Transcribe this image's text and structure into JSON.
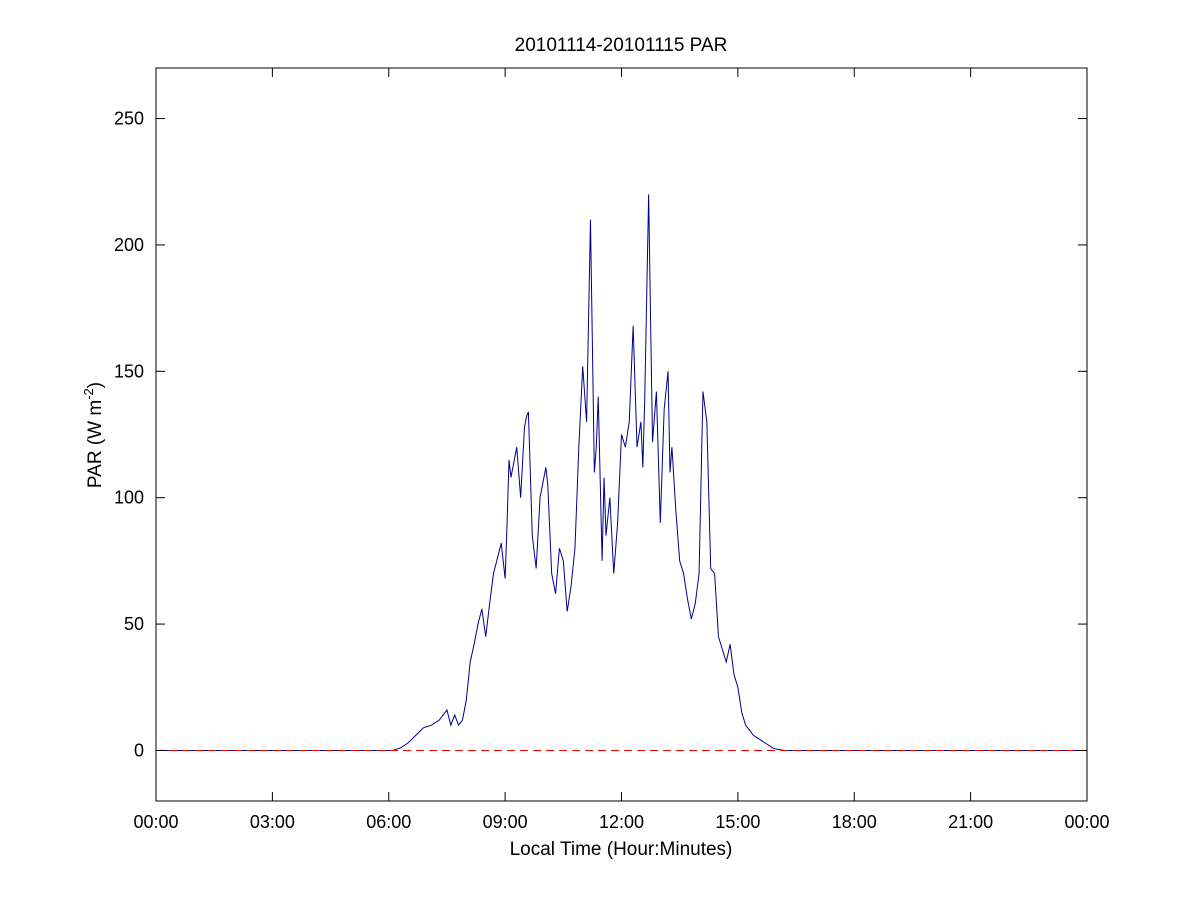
{
  "chart_data": {
    "type": "line",
    "title": "20101114-20101115 PAR",
    "xlabel": "Local Time (Hour:Minutes)",
    "ylabel": {
      "main": "PAR (W m",
      "superscript": "-2",
      "close": ")"
    },
    "xlim": [
      0,
      24
    ],
    "ylim": [
      -20,
      270
    ],
    "x_ticks": [
      {
        "value": 0,
        "label": "00:00"
      },
      {
        "value": 3,
        "label": "03:00"
      },
      {
        "value": 6,
        "label": "06:00"
      },
      {
        "value": 9,
        "label": "09:00"
      },
      {
        "value": 12,
        "label": "12:00"
      },
      {
        "value": 15,
        "label": "15:00"
      },
      {
        "value": 18,
        "label": "18:00"
      },
      {
        "value": 21,
        "label": "21:00"
      },
      {
        "value": 24,
        "label": "00:00"
      }
    ],
    "y_ticks": [
      {
        "value": 0,
        "label": "0"
      },
      {
        "value": 50,
        "label": "50"
      },
      {
        "value": 100,
        "label": "100"
      },
      {
        "value": 150,
        "label": "150"
      },
      {
        "value": 200,
        "label": "200"
      },
      {
        "value": 250,
        "label": "250"
      }
    ],
    "grid": false,
    "series": [
      {
        "color": "#00008b",
        "style": "solid",
        "x": [
          0,
          6.1,
          6.3,
          6.5,
          6.7,
          6.9,
          7.1,
          7.3,
          7.5,
          7.6,
          7.7,
          7.8,
          7.9,
          8.0,
          8.1,
          8.2,
          8.3,
          8.4,
          8.5,
          8.6,
          8.7,
          8.8,
          8.9,
          9.0,
          9.05,
          9.1,
          9.15,
          9.2,
          9.3,
          9.4,
          9.5,
          9.55,
          9.6,
          9.7,
          9.8,
          9.9,
          10.0,
          10.05,
          10.1,
          10.2,
          10.3,
          10.4,
          10.5,
          10.6,
          10.7,
          10.8,
          10.9,
          11.0,
          11.1,
          11.2,
          11.3,
          11.35,
          11.4,
          11.5,
          11.55,
          11.6,
          11.7,
          11.8,
          11.9,
          12.0,
          12.1,
          12.2,
          12.3,
          12.4,
          12.5,
          12.55,
          12.6,
          12.7,
          12.75,
          12.8,
          12.9,
          13.0,
          13.1,
          13.2,
          13.25,
          13.3,
          13.4,
          13.5,
          13.6,
          13.7,
          13.8,
          13.9,
          14.0,
          14.1,
          14.2,
          14.3,
          14.4,
          14.5,
          14.6,
          14.7,
          14.8,
          14.9,
          15.0,
          15.1,
          15.2,
          15.3,
          15.4,
          15.5,
          15.6,
          15.7,
          15.8,
          15.9,
          16.0,
          16.2,
          16.4,
          16.6,
          16.8,
          17.0,
          17.2,
          17.5,
          24
        ],
        "values": [
          0,
          0,
          1,
          3,
          6,
          9,
          10,
          12,
          16,
          10,
          14,
          10,
          12,
          20,
          35,
          42,
          50,
          56,
          45,
          58,
          70,
          76,
          82,
          68,
          90,
          115,
          108,
          112,
          120,
          100,
          128,
          132,
          134,
          85,
          72,
          100,
          108,
          112,
          105,
          70,
          62,
          80,
          75,
          55,
          65,
          80,
          120,
          152,
          130,
          210,
          110,
          120,
          140,
          75,
          108,
          85,
          100,
          70,
          90,
          125,
          120,
          130,
          168,
          120,
          130,
          112,
          140,
          220,
          170,
          122,
          142,
          90,
          135,
          150,
          110,
          120,
          95,
          75,
          70,
          60,
          52,
          58,
          70,
          142,
          130,
          72,
          70,
          45,
          40,
          35,
          42,
          30,
          25,
          15,
          10,
          8,
          6,
          5,
          4,
          3,
          2,
          1,
          0.5,
          0,
          0,
          0,
          0,
          0,
          0,
          0,
          0
        ]
      },
      {
        "color": "#ff0000",
        "style": "dashed",
        "x": [
          0,
          24
        ],
        "values": [
          0,
          0
        ]
      }
    ]
  }
}
